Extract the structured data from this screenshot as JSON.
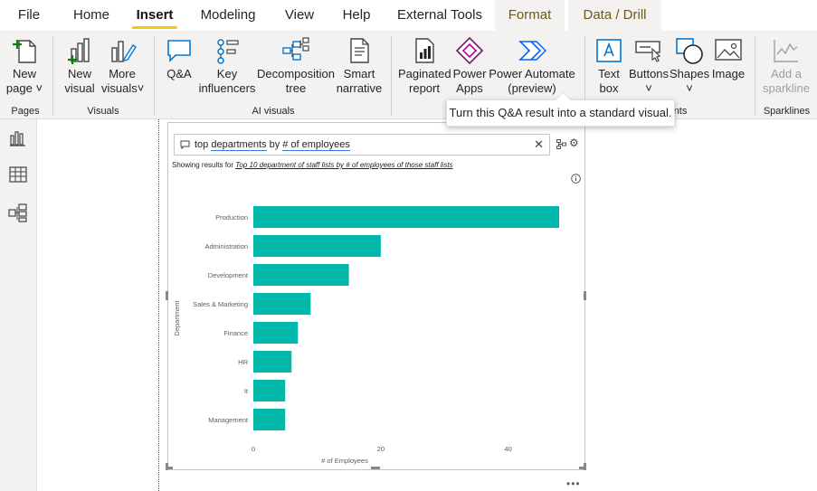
{
  "tabs": [
    {
      "label": "File"
    },
    {
      "label": "Home"
    },
    {
      "label": "Insert"
    },
    {
      "label": "Modeling"
    },
    {
      "label": "View"
    },
    {
      "label": "Help"
    },
    {
      "label": "External Tools"
    },
    {
      "label": "Format"
    },
    {
      "label": "Data / Drill"
    }
  ],
  "ribbon": {
    "new_page": [
      "New",
      "page"
    ],
    "new_visual": [
      "New",
      "visual"
    ],
    "more_visuals": [
      "More",
      "visuals"
    ],
    "qa": "Q&A",
    "key_influencers": [
      "Key",
      "influencers"
    ],
    "decomposition_tree": [
      "Decomposition",
      "tree"
    ],
    "smart_narrative": [
      "Smart",
      "narrative"
    ],
    "paginated_report": [
      "Paginated",
      "report"
    ],
    "power_apps": [
      "Power",
      "Apps"
    ],
    "power_automate": [
      "Power Automate",
      "(preview)"
    ],
    "text_box": [
      "Text",
      "box"
    ],
    "buttons": "Buttons",
    "shapes": "Shapes",
    "image": "Image",
    "add_sparkline": [
      "Add a",
      "sparkline"
    ],
    "groups": {
      "pages": "Pages",
      "visuals": "Visuals",
      "ai_visuals": "AI visuals",
      "elements_partial": "nts",
      "sparklines": "Sparklines"
    }
  },
  "tooltip": "Turn this Q&A result into a standard visual.",
  "qa": {
    "query_plain_1": "top ",
    "query_term_1": "departments",
    "query_plain_2": " by ",
    "query_term_2": "# of employees",
    "showing_prefix": "Showing results for ",
    "showing_link": "Top 10 department of staff lists by # of employees of those staff lists"
  },
  "chart_data": {
    "type": "bar",
    "orientation": "horizontal",
    "categories": [
      "Production",
      "Administration",
      "Development",
      "Sales & Marketing",
      "Finance",
      "HR",
      "It",
      "Management"
    ],
    "values": [
      48,
      20,
      15,
      9,
      7,
      6,
      5,
      5
    ],
    "xlabel": "# of Employees",
    "ylabel": "Department",
    "xticks": [
      0,
      20,
      40
    ],
    "xlim": [
      0,
      48
    ],
    "bar_color": "#01b8aa"
  },
  "colors": {
    "accent": "#f2c811",
    "bar": "#01b8aa",
    "ribbon_bg": "#f3f2f1"
  }
}
